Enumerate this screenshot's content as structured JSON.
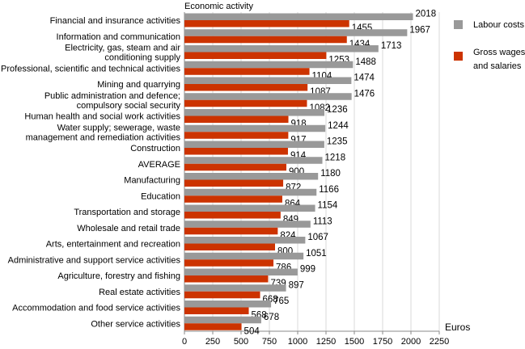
{
  "chart_data": {
    "type": "bar",
    "orientation": "horizontal",
    "title": "",
    "ylabel": "Economic activity",
    "xlabel": "Euros",
    "xlim": [
      0,
      2250
    ],
    "xticks": [
      0,
      250,
      500,
      750,
      1000,
      1250,
      1500,
      1750,
      2000,
      2250
    ],
    "grid": true,
    "legend_position": "right",
    "categories": [
      "Financial and insurance activities",
      "Information and communication",
      "Electricity, gas, steam and air\nconditioning supply",
      "Professional, scientific and technical activities",
      "Mining and quarrying",
      "Public administration and defence;\ncompulsory social security",
      "Human health and social work activities",
      "Water supply; sewerage, waste\nmanagement and remediation activities",
      "Construction",
      "AVERAGE",
      "Manufacturing",
      "Education",
      "Transportation and storage",
      "Wholesale and retail trade",
      "Arts, entertainment and recreation",
      "Administrative and support service activities",
      "Agriculture, forestry and fishing",
      "Real estate activities",
      "Accommodation and food service activities",
      "Other service activities"
    ],
    "series": [
      {
        "name": "Labour costs",
        "legend_lines": [
          "Labour costs"
        ],
        "color": "#999999",
        "values": [
          2018,
          1967,
          1713,
          1488,
          1474,
          1476,
          1236,
          1244,
          1235,
          1218,
          1180,
          1166,
          1154,
          1113,
          1067,
          1051,
          999,
          897,
          765,
          678
        ]
      },
      {
        "name": "Gross wages and salaries",
        "legend_lines": [
          "Gross wages",
          "and salaries"
        ],
        "color": "#cc3300",
        "values": [
          1455,
          1434,
          1253,
          1104,
          1087,
          1082,
          918,
          917,
          914,
          900,
          872,
          864,
          849,
          824,
          800,
          786,
          739,
          668,
          568,
          504
        ]
      }
    ]
  }
}
